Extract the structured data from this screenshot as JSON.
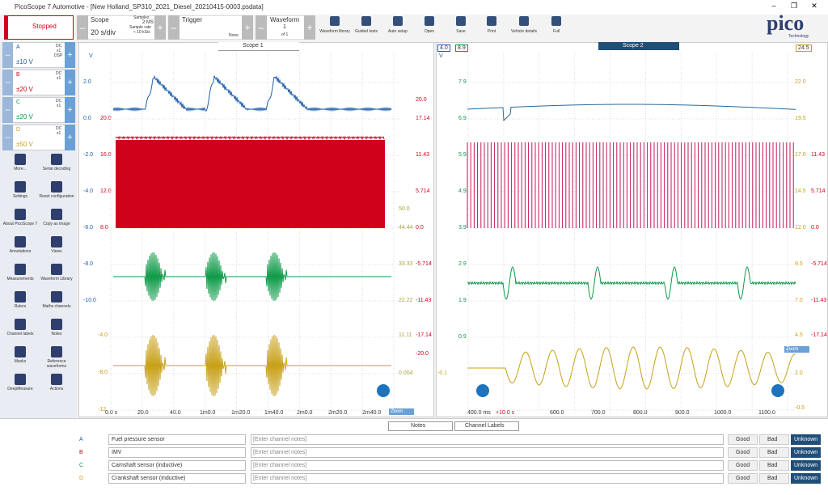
{
  "window": {
    "title": "PicoScope 7 Automotive - [New Holland_SP310_2021_Diesel_20210415-0003.psdata]"
  },
  "toolbar": {
    "status": "Stopped",
    "scope": {
      "label": "Scope",
      "timebase": "20 s/div",
      "samples_label": "Samples",
      "samples": "2 MS",
      "rate_label": "Sample rate",
      "rate": "≈ 10 kS/s"
    },
    "trigger": {
      "label": "Trigger",
      "mode": "None"
    },
    "waveform": {
      "label": "Waveform",
      "current": "1",
      "total": "of 1"
    },
    "buttons": [
      "Waveform library",
      "Guided tests",
      "Auto setup",
      "Open",
      "Save",
      "Print",
      "Vehicle details",
      "Full"
    ]
  },
  "brand": {
    "logo": "pico",
    "sub": "Technology"
  },
  "channels": [
    {
      "letter": "A",
      "coupling": "DC",
      "probe": "x1",
      "extra": "DSP",
      "range": "±10 V"
    },
    {
      "letter": "B",
      "coupling": "DC",
      "probe": "x1",
      "range": "±20 V"
    },
    {
      "letter": "C",
      "coupling": "DC",
      "probe": "x1",
      "range": "±20 V"
    },
    {
      "letter": "D",
      "coupling": "DC",
      "probe": "x1",
      "range": "±50 V"
    }
  ],
  "tools": [
    "More...",
    "Serial decoding",
    "Settings",
    "Reset configuration",
    "About PicoScope 7",
    "Copy as image",
    "Annotations",
    "Views",
    "Measurements",
    "Waveform Library",
    "Rulers",
    "Maths channels",
    "Channel labels",
    "Notes",
    "Masks",
    "Reference waveforms",
    "DeepMeasure",
    "Actions"
  ],
  "scope1": {
    "tab": "Scope 1",
    "unit": "V",
    "axis_a": [
      "2.0",
      "0.0",
      "-2.0",
      "-4.0",
      "-6.0",
      "-8.0",
      "-10.0"
    ],
    "axis_d": [
      "-4.0",
      "-8.0",
      "-12"
    ],
    "axis_b": [
      "20.0",
      "16.0",
      "12.0",
      "8.0"
    ],
    "axis_right_b": [
      "20.0",
      "17.14",
      "11.43",
      "5.714",
      "0.0",
      "-5.714",
      "-11.43",
      "-17.14",
      "-20.0"
    ],
    "axis_right_x": [
      "50.0",
      "44.44",
      "33.33",
      "22.22",
      "11.11",
      "0.004"
    ],
    "xticks": [
      "0.0 s",
      "20.0",
      "40.0",
      "1m0.0",
      "1m20.0",
      "1m40.0",
      "2m0.0",
      "2m20.0",
      "2m40.0"
    ],
    "zoom": "Zoom"
  },
  "scope2": {
    "tab": "Scope 2",
    "markers": [
      "4.0",
      "8.9",
      "24.5"
    ],
    "axis_a": [
      "7.9",
      "6.9",
      "5.9",
      "4.9",
      "3.9",
      "2.9",
      "1.9",
      "0.9"
    ],
    "axis_d": [
      "-0.1"
    ],
    "axis_right_c": [
      "22.0",
      "19.5",
      "17.0",
      "14.5",
      "12.0",
      "9.5",
      "7.0",
      "4.5",
      "2.0",
      "-0.5"
    ],
    "axis_right_b": [
      "11.43",
      "5.714",
      "0.0",
      "-5.714",
      "-11.43",
      "-17.14"
    ],
    "xticks": [
      "400.0 ms",
      "+10.0 s",
      "600.0",
      "700.0",
      "800.0",
      "900.0",
      "1000.0",
      "1100.0"
    ],
    "zoom": "Zoom"
  },
  "notes": {
    "tabs": [
      "Notes",
      "Channel Labels"
    ],
    "placeholder": "[Enter channel notes]",
    "rows": [
      {
        "ch": "A",
        "label": "Fuel pressure sensor"
      },
      {
        "ch": "B",
        "label": "IMV"
      },
      {
        "ch": "C",
        "label": "Camshaft sensor (inductive)"
      },
      {
        "ch": "D",
        "label": "Crankshaft sensor (Inductive)"
      }
    ],
    "buttons": [
      "Good",
      "Bad",
      "Unknown"
    ]
  }
}
